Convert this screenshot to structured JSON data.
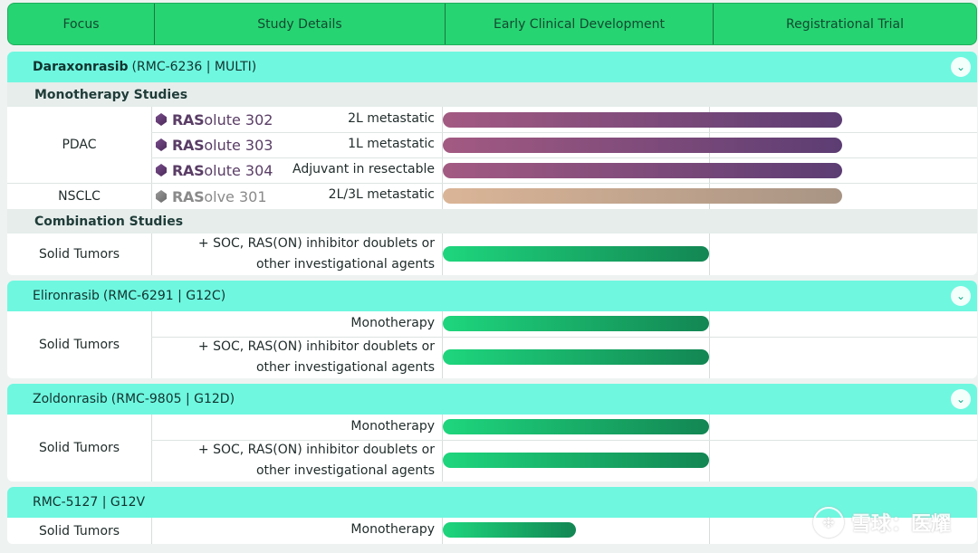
{
  "header": {
    "columns": [
      "Focus",
      "Study Details",
      "Early Clinical Development",
      "Registrational Trial"
    ]
  },
  "sections": [
    {
      "drug": "Daraxonrasib",
      "code": "(RMC-6236 | MULTI)",
      "subsections": [
        {
          "title": "Monotherapy Studies",
          "rows": [
            {
              "focus": "PDAC",
              "brand_strong": "RAS",
              "brand_rest": "olute 302",
              "detail": "2L metastatic",
              "progress": "registrational",
              "color": "#7a4a7c"
            },
            {
              "focus": "",
              "brand_strong": "RAS",
              "brand_rest": "olute 303",
              "detail": "1L metastatic",
              "progress": "registrational",
              "color": "#7a4a7c"
            },
            {
              "focus": "",
              "brand_strong": "RAS",
              "brand_rest": "olute 304",
              "detail": "Adjuvant in resectable",
              "progress": "registrational",
              "color": "#7a4a7c"
            },
            {
              "focus": "NSCLC",
              "brand_strong": "RAS",
              "brand_rest": "olve 301",
              "detail": "2L/3L metastatic",
              "progress": "registrational",
              "color": "#c4a88f"
            }
          ]
        },
        {
          "title": "Combination Studies",
          "rows": [
            {
              "focus": "Solid Tumors",
              "detail_line1": "+ SOC, RAS(ON) inhibitor doublets or",
              "detail_line2": "other investigational agents",
              "progress": "early"
            }
          ]
        }
      ]
    },
    {
      "drug": "Elironrasib",
      "code": "(RMC-6291 | G12C)",
      "focus": "Solid Tumors",
      "rows": [
        {
          "detail": "Monotherapy",
          "progress": "early"
        },
        {
          "detail_line1": "+ SOC, RAS(ON) inhibitor doublets or",
          "detail_line2": "other investigational agents",
          "progress": "early"
        }
      ]
    },
    {
      "drug": "Zoldonrasib",
      "code": "(RMC-9805 | G12D)",
      "focus": "Solid Tumors",
      "rows": [
        {
          "detail": "Monotherapy",
          "progress": "early"
        },
        {
          "detail_line1": "+ SOC, RAS(ON) inhibitor doublets or",
          "detail_line2": "other investigational agents",
          "progress": "early"
        }
      ]
    },
    {
      "drug": "RMC-5127 | G12V",
      "code": "",
      "focus": "Solid Tumors",
      "rows": [
        {
          "detail": "Monotherapy",
          "progress": "early-partial"
        }
      ]
    }
  ],
  "icons": {
    "collapse": "chevron-down-icon",
    "brand_logo": "hexagon-logo-icon"
  },
  "colors": {
    "header_green": "#27d472",
    "section_cyan": "#6ff7e0",
    "bar_green": "#1ed67d",
    "bar_purple": "#7a4a7c",
    "bar_tan": "#c4a88f"
  },
  "watermark": {
    "text": "雪球：医耀"
  }
}
